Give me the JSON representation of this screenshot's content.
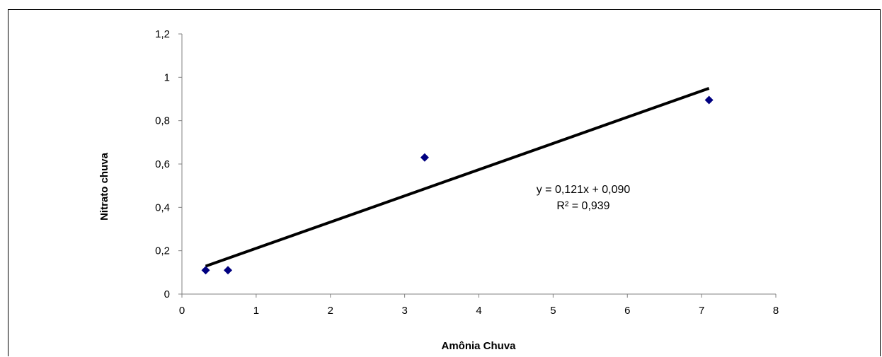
{
  "chart_data": {
    "type": "scatter",
    "title": "",
    "xlabel": "Amônia Chuva",
    "ylabel": "Nitrato chuva",
    "xlim": [
      0,
      8
    ],
    "ylim": [
      0,
      1.2
    ],
    "x_ticks": [
      0,
      1,
      2,
      3,
      4,
      5,
      6,
      7,
      8
    ],
    "x_tick_labels": [
      "0",
      "1",
      "2",
      "3",
      "4",
      "5",
      "6",
      "7",
      "8"
    ],
    "y_ticks": [
      0,
      0.2,
      0.4,
      0.6,
      0.8,
      1,
      1.2
    ],
    "y_tick_labels": [
      "0",
      "0,2",
      "0,4",
      "0,6",
      "0,8",
      "1",
      "1,2"
    ],
    "grid": false,
    "legend": "none",
    "series": [
      {
        "type": "scatter",
        "marker": "diamond",
        "color": "#000080",
        "x": [
          0.32,
          0.62,
          3.27,
          7.1
        ],
        "y": [
          0.11,
          0.11,
          0.63,
          0.895
        ]
      }
    ],
    "trendline": {
      "type": "linear",
      "slope": 0.121,
      "intercept": 0.09,
      "x_range": [
        0.32,
        7.1
      ],
      "color": "#000000",
      "equation": "y = 0,121x + 0,090",
      "r_squared": "R² = 0,939"
    }
  }
}
